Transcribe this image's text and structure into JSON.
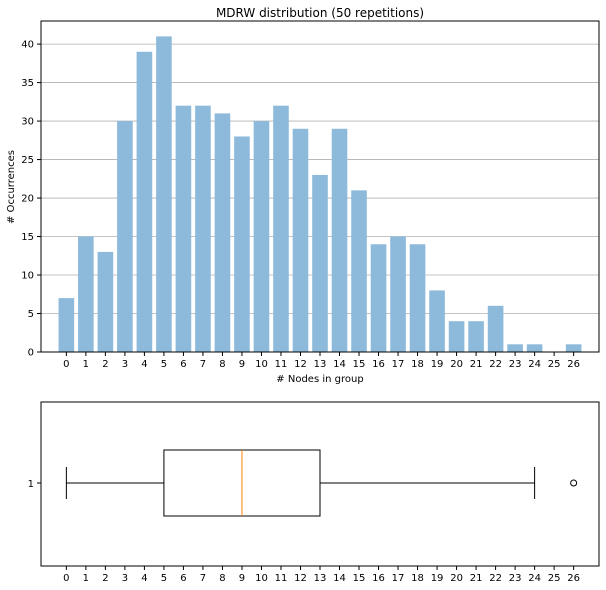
{
  "chart_data": [
    {
      "type": "bar",
      "title": "MDRW distribution (50 repetitions)",
      "xlabel": "# Nodes in group",
      "ylabel": "# Occurrences",
      "categories": [
        "0",
        "1",
        "2",
        "3",
        "4",
        "5",
        "6",
        "7",
        "8",
        "9",
        "10",
        "11",
        "12",
        "13",
        "14",
        "15",
        "16",
        "17",
        "18",
        "19",
        "20",
        "21",
        "22",
        "23",
        "24",
        "25",
        "26"
      ],
      "values": [
        7,
        15,
        13,
        30,
        39,
        41,
        32,
        32,
        31,
        28,
        30,
        32,
        29,
        23,
        29,
        21,
        14,
        15,
        14,
        8,
        4,
        4,
        6,
        1,
        1,
        0,
        1
      ],
      "ylim": [
        0,
        43
      ],
      "yticks": [
        "0",
        "5",
        "10",
        "15",
        "20",
        "25",
        "30",
        "35",
        "40"
      ],
      "grid": "horizontal",
      "bar_color": "#8dbadb"
    },
    {
      "type": "boxplot",
      "xlim": [
        -1.3,
        27.3
      ],
      "xticks": [
        "0",
        "1",
        "2",
        "3",
        "4",
        "5",
        "6",
        "7",
        "8",
        "9",
        "10",
        "11",
        "12",
        "13",
        "14",
        "15",
        "16",
        "17",
        "18",
        "19",
        "20",
        "21",
        "22",
        "23",
        "24",
        "25",
        "26"
      ],
      "ytick_label": "1",
      "whisker_low": 0,
      "q1": 5,
      "median": 9,
      "q3": 13,
      "whisker_high": 24,
      "outliers": [
        26
      ],
      "median_color": "#ff7f0e"
    }
  ]
}
